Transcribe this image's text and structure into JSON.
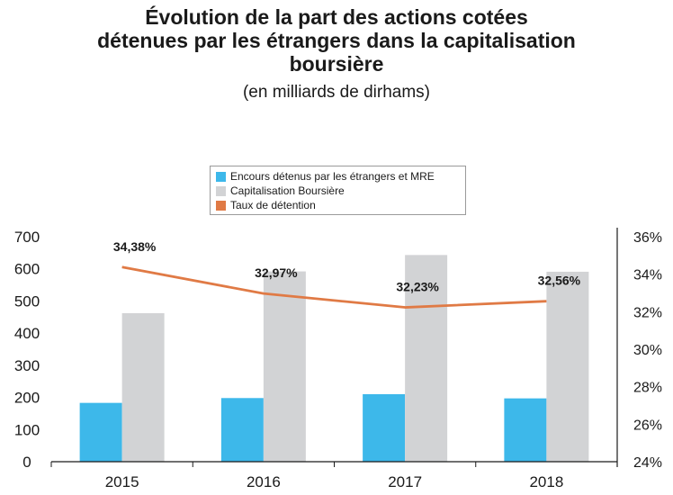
{
  "chart_data": {
    "type": "bar",
    "title_lines": [
      "Évolution de la part des actions cotées",
      "détenues par les étrangers dans la capitalisation",
      "boursière"
    ],
    "subtitle": "(en milliards de dirhams)",
    "categories": [
      "2015",
      "2016",
      "2017",
      "2018"
    ],
    "series": [
      {
        "name": "Encours détenus par les étrangers et MRE",
        "kind": "bar",
        "axis": "left",
        "color": "#3db8ea",
        "values": [
          183,
          198,
          210,
          197
        ]
      },
      {
        "name": "Capitalisation Boursière",
        "kind": "bar",
        "axis": "left",
        "color": "#d2d3d5",
        "values": [
          462,
          592,
          643,
          591
        ]
      },
      {
        "name": "Taux de détention",
        "kind": "line",
        "axis": "right",
        "color": "#e07a45",
        "values": [
          34.38,
          32.97,
          32.23,
          32.56
        ],
        "labels": [
          "34,38%",
          "32,97%",
          "32,23%",
          "32,56%"
        ]
      }
    ],
    "ylim": [
      0,
      700
    ],
    "yticks": [
      "0",
      "100",
      "200",
      "300",
      "400",
      "500",
      "600",
      "700"
    ],
    "y2lim": [
      24,
      36
    ],
    "y2ticks": [
      "24%",
      "26%",
      "28%",
      "30%",
      "32%",
      "34%",
      "36%"
    ],
    "legend_position": "top-center"
  }
}
